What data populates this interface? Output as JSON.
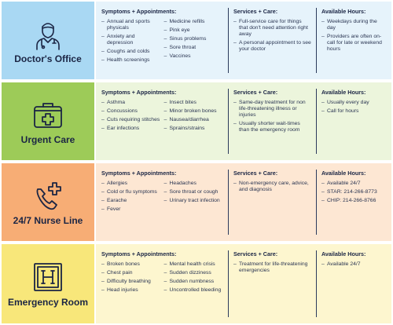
{
  "colors": {
    "doctor_label": "#a9d8f3",
    "doctor_content": "#e6f3fb",
    "urgent_label": "#9dcb58",
    "urgent_content": "#ecf5dc",
    "nurse_label": "#f7ad75",
    "nurse_content": "#fde7d3",
    "emergency_label": "#f8e77a",
    "emergency_content": "#fdf6cf",
    "text": "#1b2544"
  },
  "rows": [
    {
      "icon": "doctor-icon",
      "title": "Doctor's Office",
      "symptoms_heading": "Symptoms + Appointments:",
      "symptoms_left": [
        "Annual and sports physicals",
        "Anxiety and depression",
        "Coughs and colds",
        "Health screenings"
      ],
      "symptoms_right": [
        "Medicine refills",
        "Pink eye",
        "Sinus problems",
        "Sore throat",
        "Vaccines"
      ],
      "services_heading": "Services + Care:",
      "services": [
        "Full-service care for things that don't need attention right away",
        "A personal appointment to see your doctor"
      ],
      "hours_heading": "Available Hours:",
      "hours": [
        "Weekdays during the day",
        "Providers are often on-call for late or weekend hours"
      ]
    },
    {
      "icon": "first-aid-kit-icon",
      "title": "Urgent Care",
      "symptoms_heading": "Symptoms + Appointments:",
      "symptoms_left": [
        "Asthma",
        "Concussions",
        "Cuts requiring stitches",
        "Ear infections"
      ],
      "symptoms_right": [
        "Insect bites",
        "Minor broken bones",
        "Nausea/diarrhea",
        "Sprains/strains"
      ],
      "services_heading": "Services + Care:",
      "services": [
        "Same-day treatment for non life-threatening illness or injuries",
        "Usually shorter wait-times than the emergency room"
      ],
      "hours_heading": "Available Hours:",
      "hours": [
        "Usually every day",
        "Call for hours"
      ]
    },
    {
      "icon": "phone-plus-icon",
      "title": "24/7 Nurse Line",
      "symptoms_heading": "Symptoms + Appointments:",
      "symptoms_left": [
        "Allergies",
        "Cold or flu symptoms",
        "Earache",
        "Fever"
      ],
      "symptoms_right": [
        "Headaches",
        "Sore throat or cough",
        "Urinary tract infection"
      ],
      "services_heading": "Services + Care:",
      "services": [
        "Non-emergency care, advice, and diagnosis"
      ],
      "hours_heading": "Available Hours:",
      "hours": [
        "Available 24/7",
        "STAR: 214-266-8773",
        "CHIP: 214-266-8766"
      ]
    },
    {
      "icon": "hospital-sign-icon",
      "title": "Emergency Room",
      "symptoms_heading": "Symptoms + Appointments:",
      "symptoms_left": [
        "Broken bones",
        "Chest pain",
        "Difficulty breathing",
        "Head injuries"
      ],
      "symptoms_right": [
        "Mental health crisis",
        "Sudden dizziness",
        "Sudden numbness",
        "Uncontrolled bleeding"
      ],
      "services_heading": "Services + Care:",
      "services": [
        "Treatment for life-threatening emergencies"
      ],
      "hours_heading": "Available Hours:",
      "hours": [
        "Available 24/7"
      ]
    }
  ]
}
